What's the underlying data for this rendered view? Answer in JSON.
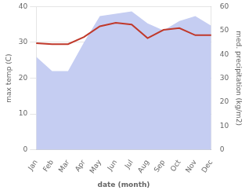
{
  "chart_data": {
    "type": "line",
    "categories": [
      "Jan",
      "Feb",
      "Mar",
      "Apr",
      "May",
      "Jun",
      "Jul",
      "Aug",
      "Sep",
      "Oct",
      "Nov",
      "Dec"
    ],
    "xlabel": "date (month)",
    "ylabel": "max temp (C)",
    "y2label": "med. precipitation (kg/m2)",
    "series": [
      {
        "type": "area",
        "color": "#c5cdf2",
        "axis": "y2",
        "values": [
          39,
          33,
          33,
          45,
          56,
          57,
          58,
          53,
          50,
          54,
          56,
          52
        ]
      },
      {
        "type": "line",
        "color": "#c0392b",
        "values": [
          29.8,
          29.5,
          29.5,
          31.5,
          34.5,
          35.5,
          35.0,
          31.2,
          33.5,
          34.0,
          32.0,
          32.0
        ]
      }
    ],
    "ylim": [
      0,
      40
    ],
    "yticks": [
      0,
      10,
      20,
      30,
      40
    ],
    "y2lim": [
      0,
      60
    ],
    "y2ticks": [
      0,
      10,
      20,
      30,
      40,
      50,
      60
    ],
    "grid": true
  }
}
